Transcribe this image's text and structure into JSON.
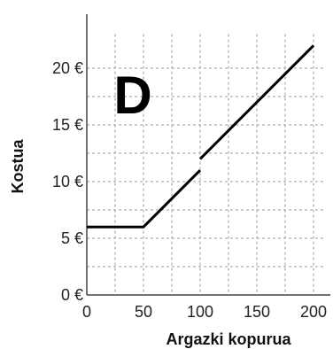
{
  "chart_data": {
    "type": "line",
    "title": "",
    "panel_label": "D",
    "xlabel": "Argazki kopurua",
    "ylabel": "Kostua",
    "xlim": [
      0,
      210
    ],
    "ylim": [
      0,
      23
    ],
    "x_ticks": [
      0,
      50,
      100,
      150,
      200
    ],
    "y_ticks": [
      0,
      5,
      10,
      15,
      20
    ],
    "y_tick_labels": [
      "0 €",
      "5 €",
      "10 €",
      "15 €",
      "20 €"
    ],
    "x_grid": [
      0,
      25,
      50,
      75,
      100,
      125,
      150,
      175,
      200
    ],
    "y_grid": [
      0,
      2.5,
      5,
      7.5,
      10,
      12.5,
      15,
      17.5,
      20
    ],
    "grid": true,
    "grid_style": "dashed",
    "series": [
      {
        "segments": [
          {
            "x": [
              0,
              50,
              100
            ],
            "y": [
              6,
              6,
              11
            ]
          },
          {
            "x": [
              100,
              200
            ],
            "y": [
              12,
              22
            ]
          }
        ]
      }
    ],
    "colors": {
      "line": "#000000",
      "grid": "#999999",
      "axis": "#444444"
    }
  }
}
